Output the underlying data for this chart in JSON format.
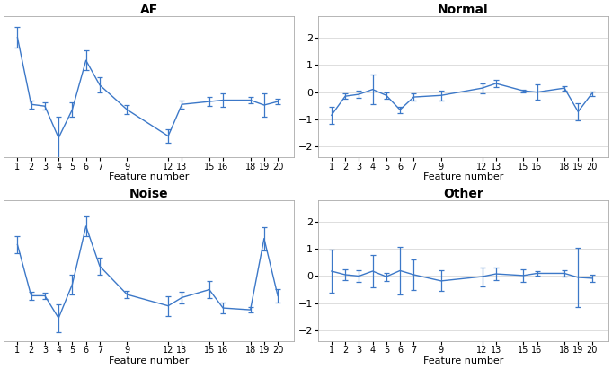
{
  "x_ticks": [
    1,
    2,
    3,
    4,
    5,
    6,
    7,
    9,
    12,
    13,
    15,
    16,
    18,
    19,
    20
  ],
  "x_positions": [
    1,
    2,
    3,
    4,
    5,
    6,
    7,
    9,
    12,
    13,
    15,
    16,
    18,
    19,
    20
  ],
  "AF": {
    "title": "AF",
    "mean": [
      2.2,
      0.3,
      0.25,
      -0.65,
      0.15,
      1.55,
      0.85,
      0.15,
      -0.6,
      0.3,
      0.38,
      0.42,
      0.42,
      0.28,
      0.38
    ],
    "err": [
      0.3,
      0.12,
      0.1,
      0.6,
      0.2,
      0.28,
      0.22,
      0.12,
      0.2,
      0.12,
      0.12,
      0.18,
      0.08,
      0.32,
      0.08
    ],
    "ylim": [
      -1.2,
      2.8
    ],
    "yticks": [],
    "show_yticks": false
  },
  "Normal": {
    "title": "Normal",
    "mean": [
      -0.85,
      -0.15,
      -0.08,
      0.1,
      -0.12,
      -0.65,
      -0.18,
      -0.12,
      0.15,
      0.32,
      0.05,
      0.0,
      0.15,
      -0.72,
      -0.05
    ],
    "err": [
      0.32,
      0.1,
      0.12,
      0.55,
      0.12,
      0.12,
      0.12,
      0.18,
      0.18,
      0.12,
      0.05,
      0.28,
      0.08,
      0.32,
      0.08
    ],
    "ylim": [
      -2.4,
      2.8
    ],
    "yticks": [
      -2,
      -1,
      0,
      1,
      2
    ],
    "show_yticks": true
  },
  "Noise": {
    "title": "Noise",
    "mean": [
      1.35,
      -0.32,
      -0.32,
      -1.05,
      0.05,
      1.95,
      0.65,
      -0.28,
      -0.65,
      -0.38,
      -0.12,
      -0.72,
      -0.78,
      1.55,
      -0.32
    ],
    "err": [
      0.28,
      0.14,
      0.1,
      0.45,
      0.32,
      0.32,
      0.28,
      0.12,
      0.32,
      0.18,
      0.28,
      0.18,
      0.08,
      0.38,
      0.22
    ],
    "ylim": [
      -1.8,
      2.8
    ],
    "yticks": [],
    "show_yticks": false
  },
  "Other": {
    "title": "Other",
    "mean": [
      0.18,
      0.05,
      0.0,
      0.18,
      -0.02,
      0.2,
      0.05,
      -0.18,
      -0.02,
      0.08,
      0.02,
      0.1,
      0.1,
      -0.05,
      -0.08
    ],
    "err": [
      0.78,
      0.2,
      0.22,
      0.6,
      0.15,
      0.88,
      0.55,
      0.38,
      0.35,
      0.22,
      0.22,
      0.08,
      0.12,
      1.1,
      0.12
    ],
    "ylim": [
      -2.4,
      2.8
    ],
    "yticks": [
      -2,
      -1,
      0,
      1,
      2
    ],
    "show_yticks": true
  },
  "line_color": "#3c78c8",
  "xlabel": "Feature number",
  "bg_color": "#ffffff",
  "grid_color": "#d8d8d8"
}
